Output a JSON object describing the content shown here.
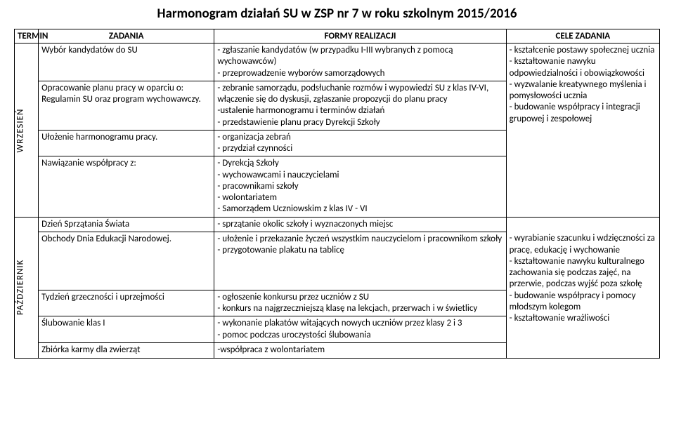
{
  "title": "Harmonogram działań SU w ZSP nr 7 w roku szkolnym 2015/2016",
  "headers": {
    "termin": "TERMIN",
    "zadania": "ZADANIA",
    "formy": "FORMY REALIZACJI",
    "cele": "CELE ZADANIA"
  },
  "months": {
    "wrzesien": "WRZESIEŃ",
    "pazdziernik": "PAŹDZIERNIK"
  },
  "w": {
    "z1": "Wybór kandydatów do SU",
    "f1": "- zgłaszanie kandydatów (w przypadku I-III wybranych z pomocą wychowawców)\n- przeprowadzenie wyborów samorządowych",
    "z2": "Opracowanie planu pracy w oparciu o: Regulamin SU oraz program wychowawczy.",
    "f2": "- zebranie samorządu, podsłuchanie rozmów i wypowiedzi SU z klas IV-VI, włączenie się do dyskusji, zgłaszanie propozycji do planu pracy\n-ustalenie harmonogramu i terminów działań\n- przedstawienie planu pracy Dyrekcji Szkoły",
    "z3": "Ułożenie harmonogramu pracy.",
    "f3": "- organizacja zebrań\n- przydział czynności",
    "z4": "Nawiązanie współpracy z:",
    "f4": "- Dyrekcją Szkoły\n- wychowawcami i nauczycielami\n- pracownikami szkoły\n- wolontariatem\n- Samorządem Uczniowskim z klas IV - VI",
    "cele": "- kształcenie postawy społecznej ucznia\n- kształtowanie nawyku odpowiedzialności i obowiązkowości\n- wyzwalanie kreatywnego myślenia i pomysłowości ucznia\n- budowanie współpracy i integracji grupowej i zespołowej"
  },
  "p": {
    "z1": "Dzień Sprzątania Świata",
    "f1": "- sprzątanie okolic szkoły i wyznaczonych miejsc",
    "z2": "Obchody Dnia Edukacji Narodowej.",
    "f2": "- ułożenie i przekazanie życzeń wszystkim nauczycielom i pracownikom szkoły\n- przygotowanie plakatu na tablicę",
    "z3": "Tydzień grzeczności i uprzejmości",
    "f3": "-  ogłoszenie konkursu przez uczniów z SU\n- konkurs na najgrzeczniejszą klasę na lekcjach, przerwach i w świetlicy",
    "z4": "Ślubowanie klas I",
    "f4": "- wykonanie plakatów witających nowych uczniów przez klasy 2 i 3\n- pomoc podczas uroczystości ślubowania",
    "z5": "Zbiórka karmy dla zwierząt",
    "f5": "-współpraca z wolontariatem",
    "cele": "- wyrabianie szacunku i wdzięczności za pracę, edukację i wychowanie\n- kształtowanie nawyku kulturalnego zachowania się podczas zajęć, na przerwie, podczas wyjść poza szkołę\n- budowanie współpracy i pomocy młodszym kolegom\n- kształtowanie wrażliwości"
  }
}
